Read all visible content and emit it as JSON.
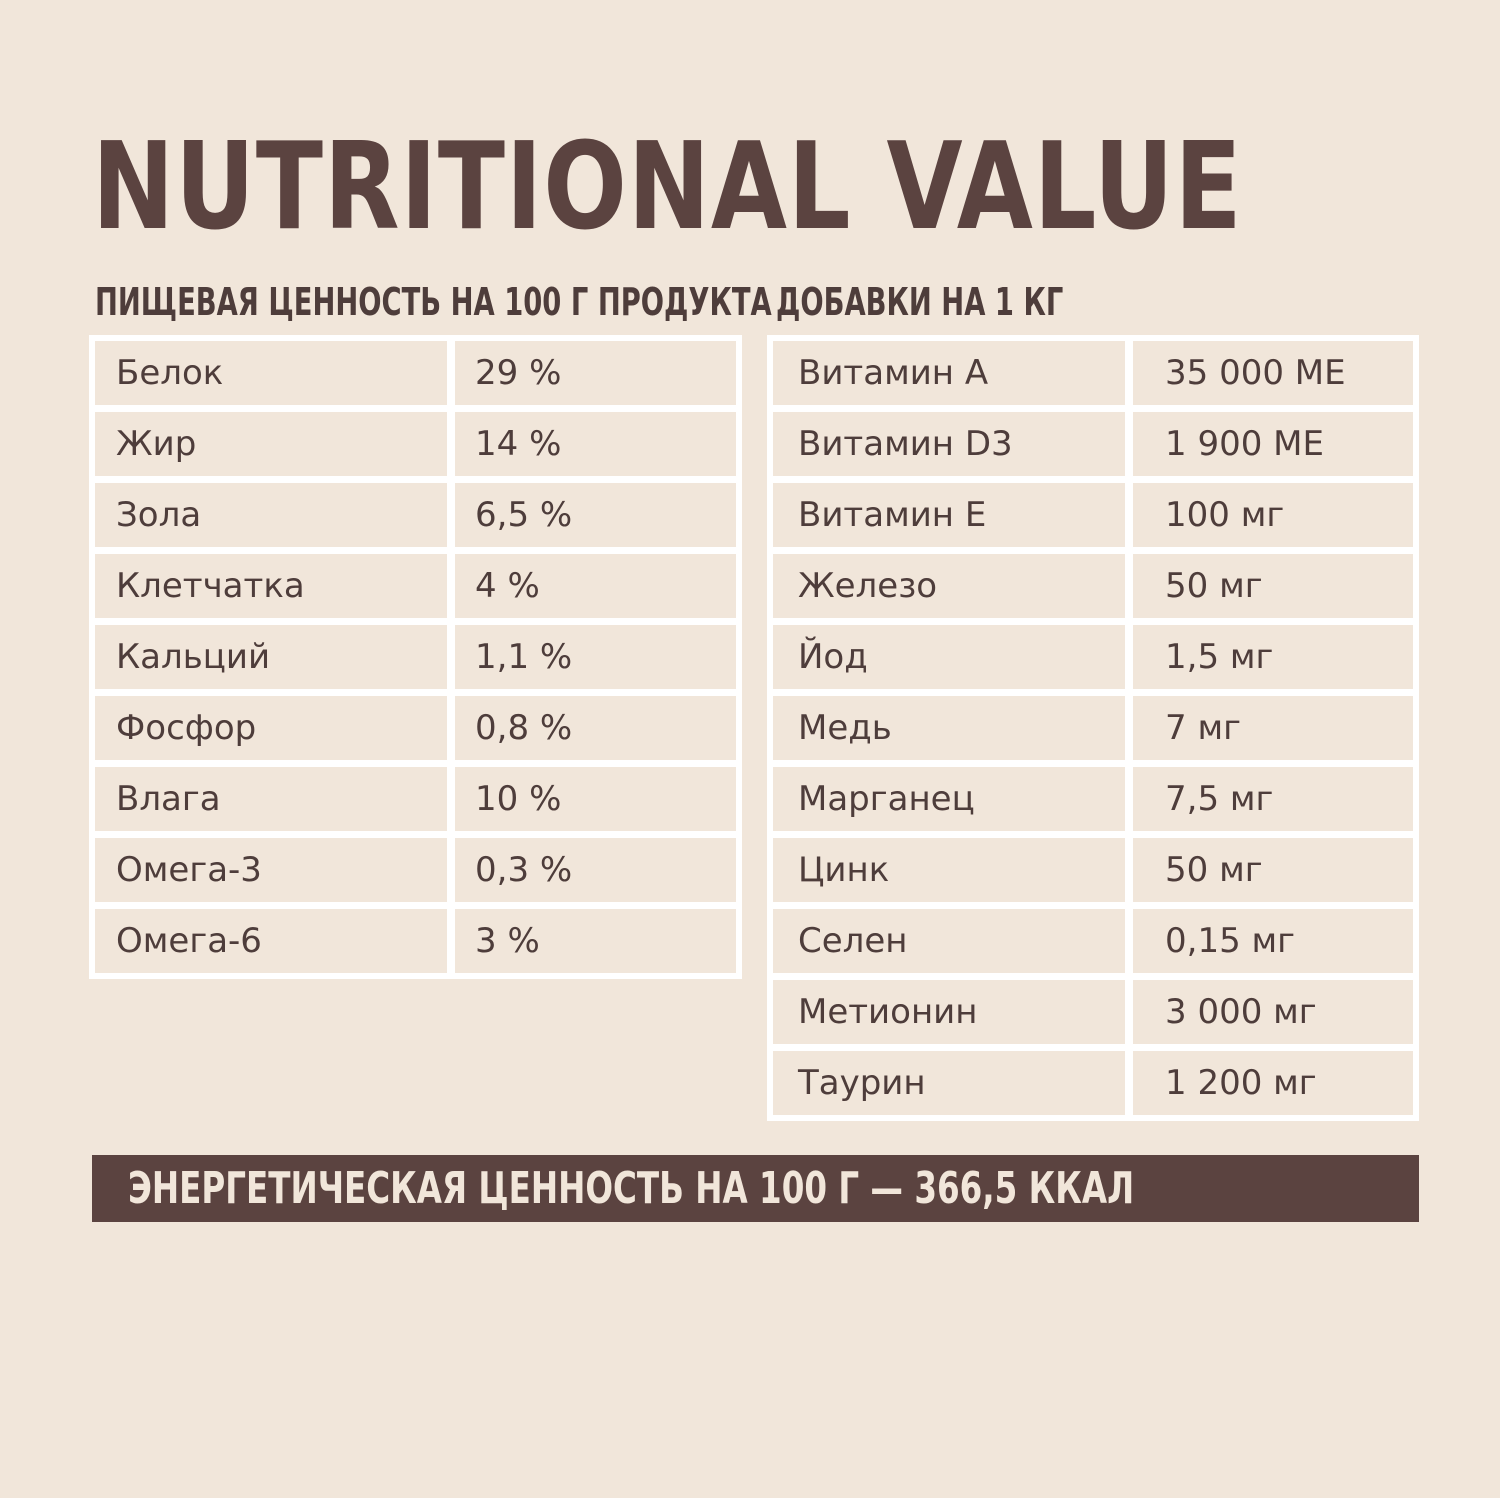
{
  "title": "NUTRITIONAL VALUE",
  "nutrition": {
    "heading": "ПИЩЕВАЯ ЦЕННОСТЬ НА 100 Г ПРОДУКТА",
    "rows": [
      {
        "name": "Белок",
        "value": "29 %"
      },
      {
        "name": "Жир",
        "value": "14 %"
      },
      {
        "name": "Зола",
        "value": "6,5 %"
      },
      {
        "name": "Клетчатка",
        "value": "4 %"
      },
      {
        "name": "Кальций",
        "value": "1,1 %"
      },
      {
        "name": "Фосфор",
        "value": "0,8 %"
      },
      {
        "name": "Влага",
        "value": "10 %"
      },
      {
        "name": "Омега-3",
        "value": "0,3 %"
      },
      {
        "name": "Омега-6",
        "value": "3 %"
      }
    ]
  },
  "additives": {
    "heading": "ДОБАВКИ НА 1 КГ",
    "rows": [
      {
        "name": "Витамин А",
        "value": "35 000 МЕ"
      },
      {
        "name": "Витамин D3",
        "value": "1 900 МЕ"
      },
      {
        "name": "Витамин Е",
        "value": "100 мг"
      },
      {
        "name": "Железо",
        "value": "50 мг"
      },
      {
        "name": "Йод",
        "value": "1,5 мг"
      },
      {
        "name": "Медь",
        "value": "7 мг"
      },
      {
        "name": "Марганец",
        "value": "7,5 мг"
      },
      {
        "name": "Цинк",
        "value": "50 мг"
      },
      {
        "name": "Селен",
        "value": "0,15 мг"
      },
      {
        "name": "Метионин",
        "value": "3 000 мг"
      },
      {
        "name": "Таурин",
        "value": "1 200 мг"
      }
    ]
  },
  "energy": "ЭНЕРГЕТИЧЕСКАЯ ЦЕННОСТЬ НА 100 Г — 366,5 ККАЛ",
  "colors": {
    "background": "#f1e6da",
    "text": "#4e3d3b",
    "accent": "#5b4340",
    "table_border": "#ffffff"
  }
}
